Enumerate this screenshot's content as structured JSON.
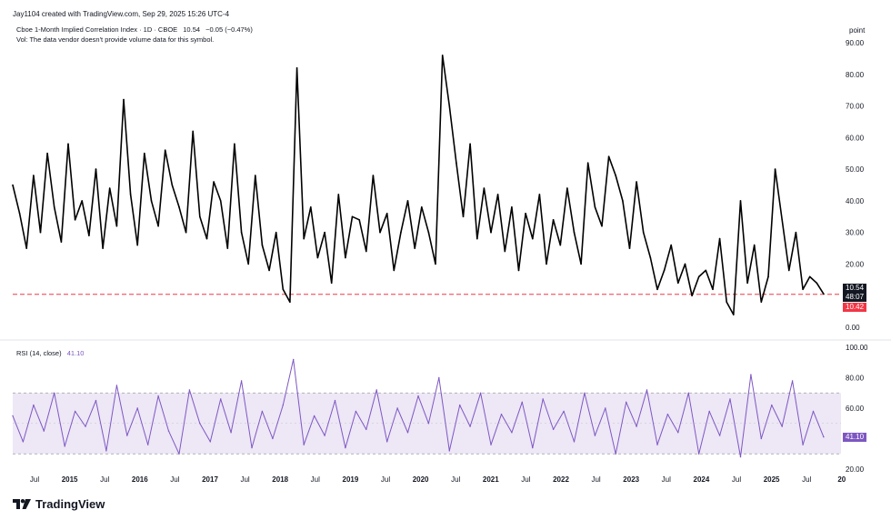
{
  "header": "Jay1104 created with TradingView.com, Sep 29, 2025 15:26 UTC-4",
  "legend": {
    "symbol": "Cboe 1-Month Implied Correlation Index · 1D · CBOE",
    "last": "10.54",
    "change": "−0.05 (−0.47%)",
    "vol_note": "Vol: The data vendor doesn't provide volume data for this symbol."
  },
  "rsi_legend": {
    "label": "RSI (14, close)",
    "value": "41.10"
  },
  "unit_label": "point",
  "badges": {
    "price": "10.54",
    "countdown": "48:07",
    "level": "10.42",
    "rsi": "41.10"
  },
  "brand": "TradingView",
  "colors": {
    "price_line": "#000000",
    "rsi_line": "#7e57c2",
    "rsi_band": "#ede7f6",
    "level_line": "#f23645",
    "badge_dark": "#131722",
    "badge_red": "#f23645",
    "badge_rsi": "#7e57c2"
  },
  "chart_data": [
    {
      "type": "line",
      "title": "Cboe 1-Month Implied Correlation Index · 1D · CBOE",
      "yticks": [
        "0.00",
        "10.00",
        "20.00",
        "30.00",
        "40.00",
        "50.00",
        "60.00",
        "70.00",
        "80.00",
        "90.00"
      ],
      "ylim": [
        0,
        90
      ],
      "xticks": [
        "Jul",
        "2015",
        "Jul",
        "2016",
        "Jul",
        "2017",
        "Jul",
        "2018",
        "Jul",
        "2019",
        "Jul",
        "2020",
        "Jul",
        "2021",
        "Jul",
        "2022",
        "Jul",
        "2023",
        "Jul",
        "2024",
        "Jul",
        "2025",
        "Jul",
        "20"
      ],
      "horizontal_line": {
        "value": 10.42,
        "style": "dashed",
        "color": "#f23645"
      },
      "series": [
        {
          "x": [
            2014.0,
            2014.1,
            2014.2,
            2014.3,
            2014.4,
            2014.5,
            2014.6,
            2014.7,
            2014.8,
            2014.9,
            2015.0,
            2015.1,
            2015.2,
            2015.3,
            2015.4,
            2015.5,
            2015.6,
            2015.7,
            2015.8,
            2015.9,
            2016.0,
            2016.1,
            2016.2,
            2016.3,
            2016.4,
            2016.5,
            2016.6,
            2016.7,
            2016.8,
            2016.9,
            2017.0,
            2017.1,
            2017.2,
            2017.3,
            2017.4,
            2017.5,
            2017.6,
            2017.7,
            2017.8,
            2017.9,
            2018.0,
            2018.1,
            2018.2,
            2018.3,
            2018.4,
            2018.5,
            2018.6,
            2018.7,
            2018.8,
            2018.9,
            2019.0,
            2019.1,
            2019.2,
            2019.3,
            2019.4,
            2019.5,
            2019.6,
            2019.7,
            2019.8,
            2019.9,
            2020.0,
            2020.1,
            2020.2,
            2020.3,
            2020.4,
            2020.5,
            2020.6,
            2020.7,
            2020.8,
            2020.9,
            2021.0,
            2021.1,
            2021.2,
            2021.3,
            2021.4,
            2021.5,
            2021.6,
            2021.7,
            2021.8,
            2021.9,
            2022.0,
            2022.1,
            2022.2,
            2022.3,
            2022.4,
            2022.5,
            2022.6,
            2022.7,
            2022.8,
            2022.9,
            2023.0,
            2023.1,
            2023.2,
            2023.3,
            2023.4,
            2023.5,
            2023.6,
            2023.7,
            2023.8,
            2023.9,
            2024.0,
            2024.1,
            2024.2,
            2024.3,
            2024.4,
            2024.5,
            2024.6,
            2024.7,
            2024.8,
            2024.9,
            2025.0,
            2025.1,
            2025.2,
            2025.3,
            2025.4,
            2025.5,
            2025.6,
            2025.7
          ],
          "values": [
            45,
            36,
            25,
            48,
            30,
            55,
            38,
            27,
            58,
            34,
            40,
            29,
            50,
            25,
            44,
            32,
            72,
            42,
            26,
            55,
            40,
            32,
            56,
            45,
            38,
            30,
            62,
            35,
            28,
            46,
            40,
            25,
            58,
            30,
            20,
            48,
            26,
            18,
            30,
            12,
            8,
            82,
            28,
            38,
            22,
            30,
            14,
            42,
            22,
            35,
            34,
            24,
            48,
            30,
            36,
            18,
            30,
            40,
            25,
            38,
            30,
            20,
            86,
            70,
            52,
            35,
            58,
            28,
            44,
            30,
            42,
            24,
            38,
            18,
            36,
            28,
            42,
            20,
            34,
            26,
            44,
            30,
            20,
            52,
            38,
            32,
            54,
            48,
            40,
            25,
            46,
            30,
            22,
            12,
            18,
            26,
            14,
            20,
            10,
            16,
            18,
            12,
            28,
            8,
            4,
            40,
            14,
            26,
            8,
            16,
            50,
            34,
            18,
            30,
            12,
            16,
            14,
            10.54
          ]
        }
      ]
    },
    {
      "type": "line",
      "title": "RSI (14, close)",
      "yticks": [
        "20.00",
        "40.00",
        "60.00",
        "80.00",
        "100.00"
      ],
      "ylim": [
        20,
        100
      ],
      "band": [
        30,
        70
      ],
      "series": [
        {
          "x": [
            2014.0,
            2014.15,
            2014.3,
            2014.45,
            2014.6,
            2014.75,
            2014.9,
            2015.05,
            2015.2,
            2015.35,
            2015.5,
            2015.65,
            2015.8,
            2015.95,
            2016.1,
            2016.25,
            2016.4,
            2016.55,
            2016.7,
            2016.85,
            2017.0,
            2017.15,
            2017.3,
            2017.45,
            2017.6,
            2017.75,
            2017.9,
            2018.05,
            2018.2,
            2018.35,
            2018.5,
            2018.65,
            2018.8,
            2018.95,
            2019.1,
            2019.25,
            2019.4,
            2019.55,
            2019.7,
            2019.85,
            2020.0,
            2020.15,
            2020.3,
            2020.45,
            2020.6,
            2020.75,
            2020.9,
            2021.05,
            2021.2,
            2021.35,
            2021.5,
            2021.65,
            2021.8,
            2021.95,
            2022.1,
            2022.25,
            2022.4,
            2022.55,
            2022.7,
            2022.85,
            2023.0,
            2023.15,
            2023.3,
            2023.45,
            2023.6,
            2023.75,
            2023.9,
            2024.05,
            2024.2,
            2024.35,
            2024.5,
            2024.65,
            2024.8,
            2024.95,
            2025.1,
            2025.25,
            2025.4,
            2025.55,
            2025.7
          ],
          "values": [
            55,
            38,
            62,
            45,
            70,
            35,
            58,
            48,
            65,
            32,
            75,
            42,
            60,
            36,
            68,
            45,
            30,
            72,
            50,
            38,
            66,
            44,
            78,
            34,
            58,
            40,
            62,
            92,
            36,
            55,
            42,
            65,
            34,
            58,
            46,
            72,
            38,
            60,
            44,
            68,
            50,
            80,
            32,
            62,
            48,
            70,
            36,
            56,
            44,
            64,
            34,
            66,
            46,
            58,
            38,
            70,
            42,
            60,
            30,
            64,
            48,
            72,
            36,
            56,
            44,
            70,
            30,
            58,
            42,
            66,
            28,
            82,
            40,
            62,
            48,
            78,
            36,
            58,
            41.1
          ]
        }
      ]
    }
  ]
}
